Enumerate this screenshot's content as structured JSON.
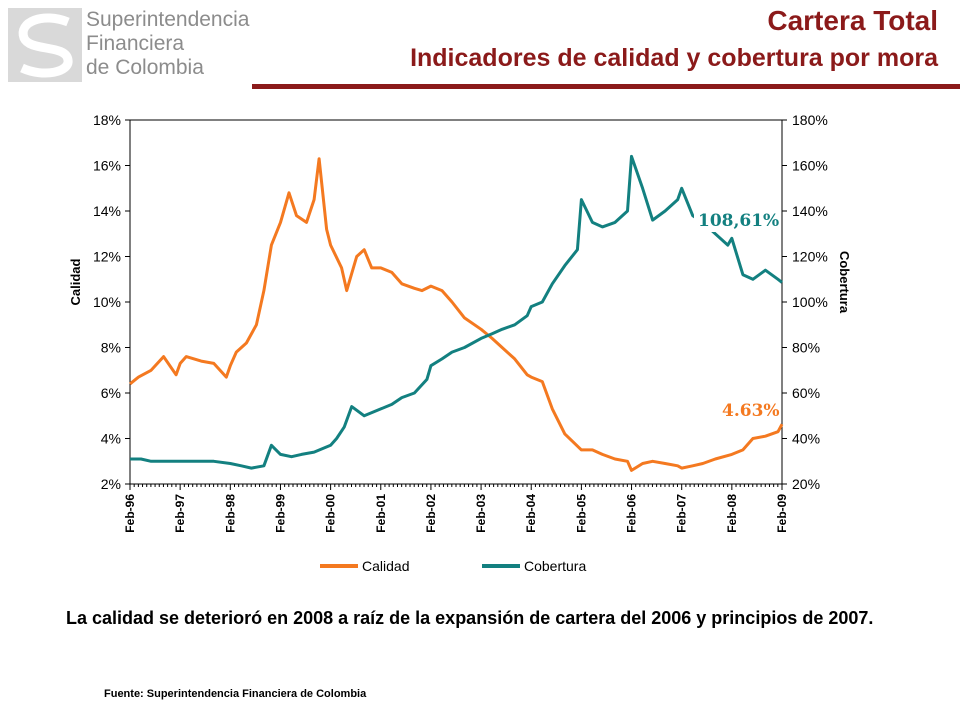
{
  "header": {
    "logo_line1": "Superintendencia",
    "logo_line2": "Financiera",
    "logo_line3": "de Colombia",
    "title": "Cartera Total",
    "subtitle": "Indicadores de calidad y cobertura por mora",
    "accent_color": "#8b1a1a"
  },
  "comment_text": "La calidad se deterioró en 2008 a raíz de la expansión de cartera del 2006 y principios de 2007.",
  "source_text": "Fuente: Superintendencia Financiera de Colombia",
  "chart_data": {
    "type": "line",
    "x_labels": [
      "Feb-96",
      "Feb-97",
      "Feb-98",
      "Feb-99",
      "Feb-00",
      "Feb-01",
      "Feb-02",
      "Feb-03",
      "Feb-04",
      "Feb-05",
      "Feb-06",
      "Feb-07",
      "Feb-08",
      "Feb-09"
    ],
    "x_unit": "year",
    "ylabel_left": "Calidad",
    "ylabel_right": "Cobertura",
    "ylim_left": [
      2,
      18
    ],
    "ylim_right": [
      20,
      180
    ],
    "yticks_left": [
      "2%",
      "4%",
      "6%",
      "8%",
      "10%",
      "12%",
      "14%",
      "16%",
      "18%"
    ],
    "yticks_right": [
      "20%",
      "40%",
      "60%",
      "80%",
      "100%",
      "120%",
      "140%",
      "160%",
      "180%"
    ],
    "grid": false,
    "legend_position": "bottom",
    "annotations": [
      {
        "text": "108,61%",
        "series": "Cobertura",
        "color": "#138080"
      },
      {
        "text": "4.63%",
        "series": "Calidad",
        "color": "#f47920"
      }
    ],
    "series": [
      {
        "name": "Calidad",
        "axis": "left",
        "color": "#f47920",
        "x": [
          1996.08,
          1996.25,
          1996.5,
          1996.75,
          1997.0,
          1997.08,
          1997.2,
          1997.5,
          1997.75,
          1998.0,
          1998.08,
          1998.2,
          1998.4,
          1998.6,
          1998.75,
          1998.9,
          1999.08,
          1999.25,
          1999.4,
          1999.6,
          1999.75,
          1999.85,
          2000.0,
          2000.08,
          2000.3,
          2000.4,
          2000.6,
          2000.75,
          2000.9,
          2001.08,
          2001.3,
          2001.5,
          2001.75,
          2001.9,
          2002.08,
          2002.3,
          2002.5,
          2002.75,
          2003.08,
          2003.3,
          2003.5,
          2003.75,
          2004.0,
          2004.08,
          2004.3,
          2004.5,
          2004.75,
          2005.08,
          2005.3,
          2005.5,
          2005.75,
          2006.0,
          2006.08,
          2006.3,
          2006.5,
          2006.75,
          2007.0,
          2007.08,
          2007.3,
          2007.5,
          2007.75,
          2008.08,
          2008.3,
          2008.5,
          2008.75,
          2009.0,
          2009.08
        ],
        "y": [
          6.4,
          6.7,
          7.0,
          7.6,
          6.8,
          7.3,
          7.6,
          7.4,
          7.3,
          6.7,
          7.2,
          7.8,
          8.2,
          9.0,
          10.5,
          12.5,
          13.5,
          14.8,
          13.8,
          13.5,
          14.5,
          16.3,
          13.2,
          12.5,
          11.5,
          10.5,
          12.0,
          12.3,
          11.5,
          11.5,
          11.3,
          10.8,
          10.6,
          10.5,
          10.7,
          10.5,
          10.0,
          9.3,
          8.8,
          8.4,
          8.0,
          7.5,
          6.8,
          6.7,
          6.5,
          5.3,
          4.2,
          3.5,
          3.5,
          3.3,
          3.1,
          3.0,
          2.6,
          2.9,
          3.0,
          2.9,
          2.8,
          2.7,
          2.8,
          2.9,
          3.1,
          3.3,
          3.5,
          4.0,
          4.1,
          4.3,
          4.63
        ]
      },
      {
        "name": "Cobertura",
        "axis": "right",
        "color": "#138080",
        "x": [
          1996.08,
          1996.3,
          1996.5,
          1996.75,
          1997.08,
          1997.3,
          1997.5,
          1997.75,
          1998.08,
          1998.3,
          1998.5,
          1998.75,
          1998.9,
          1999.08,
          1999.3,
          1999.5,
          1999.75,
          2000.08,
          2000.2,
          2000.35,
          2000.5,
          2000.75,
          2001.08,
          2001.3,
          2001.5,
          2001.75,
          2002.0,
          2002.08,
          2002.3,
          2002.5,
          2002.75,
          2003.08,
          2003.3,
          2003.5,
          2003.75,
          2004.0,
          2004.08,
          2004.3,
          2004.5,
          2004.75,
          2005.0,
          2005.08,
          2005.3,
          2005.5,
          2005.75,
          2006.0,
          2006.08,
          2006.3,
          2006.5,
          2006.75,
          2007.0,
          2007.08,
          2007.3,
          2007.5,
          2007.75,
          2008.0,
          2008.08,
          2008.3,
          2008.5,
          2008.75,
          2009.0,
          2009.08
        ],
        "y": [
          31,
          31,
          30,
          30,
          30,
          30,
          30,
          30,
          29,
          28,
          27,
          28,
          37,
          33,
          32,
          33,
          34,
          37,
          40,
          45,
          54,
          50,
          53,
          55,
          58,
          60,
          66,
          72,
          75,
          78,
          80,
          84,
          86,
          88,
          90,
          94,
          98,
          100,
          108,
          116,
          123,
          145,
          135,
          133,
          135,
          140,
          164,
          150,
          136,
          140,
          145,
          150,
          138,
          135,
          130,
          125,
          128,
          112,
          110,
          114,
          110,
          108.61
        ]
      }
    ]
  }
}
